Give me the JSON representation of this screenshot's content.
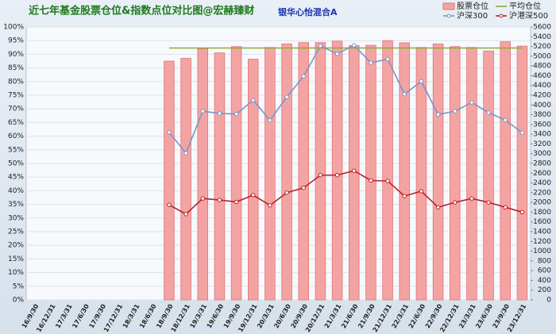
{
  "chart_data": {
    "type": "bar-line",
    "title": "近七年基金股票仓位&指数点位对比图@宏赫臻财",
    "subtitle": "银华心怡混合A",
    "categories": [
      "16/9/30",
      "16/12/31",
      "17/3/31",
      "17/6/30",
      "17/9/30",
      "17/12/31",
      "18/3/31",
      "18/6/30",
      "18/9/30",
      "18/12/31",
      "19/3/31",
      "19/6/30",
      "19/9/30",
      "19/12/31",
      "20/3/31",
      "20/6/30",
      "20/9/30",
      "20/12/31",
      "21/3/31",
      "21/6/30",
      "21/9/30",
      "21/12/31",
      "22/3/31",
      "22/6/30",
      "22/9/30",
      "22/12/31",
      "23/3/31",
      "23/6/30",
      "23/9/30",
      "23/12/31"
    ],
    "series": [
      {
        "name": "股票仓位",
        "kind": "bar",
        "color": "#f4a3a3",
        "values": [
          null,
          null,
          null,
          null,
          null,
          null,
          null,
          null,
          87.5,
          88.5,
          92,
          90.5,
          92.8,
          88.2,
          92.5,
          93.8,
          94.3,
          94.3,
          94.8,
          93.2,
          93.3,
          95,
          94.2,
          92.5,
          93.8,
          92.8,
          92.5,
          91.2,
          94.6,
          93
        ]
      },
      {
        "name": "平均仓位",
        "kind": "line",
        "color": "#8aaa3a",
        "values": [
          null,
          null,
          null,
          null,
          null,
          null,
          null,
          null,
          92.3,
          92.3,
          92.3,
          92.3,
          92.3,
          92.3,
          92.3,
          92.3,
          92.3,
          92.3,
          92.3,
          92.3,
          92.3,
          92.3,
          92.3,
          92.3,
          92.3,
          92.3,
          92.3,
          92.3,
          92.3,
          92.3
        ]
      },
      {
        "name": "沪深300",
        "kind": "line",
        "markers": true,
        "axis": "y2",
        "color": "#7a96c4",
        "values": [
          null,
          null,
          null,
          null,
          null,
          null,
          null,
          null,
          3438,
          3011,
          3872,
          3826,
          3814,
          4097,
          3686,
          4164,
          4587,
          5211,
          5048,
          5224,
          4867,
          4940,
          4222,
          4485,
          3804,
          3872,
          4051,
          3842,
          3690,
          3431
        ]
      },
      {
        "name": "沪港深500",
        "kind": "line",
        "markers": true,
        "axis": "y2",
        "color": "#b5232a",
        "values": [
          null,
          null,
          null,
          null,
          null,
          null,
          null,
          null,
          1950,
          1760,
          2080,
          2050,
          2010,
          2150,
          1940,
          2200,
          2300,
          2560,
          2560,
          2650,
          2450,
          2440,
          2130,
          2230,
          1900,
          2000,
          2080,
          2000,
          1900,
          1800
        ]
      }
    ],
    "ylim": [
      0,
      100
    ],
    "yticks": [
      {
        "value": 0,
        "label": "0%"
      },
      {
        "value": 5,
        "label": "5%"
      },
      {
        "value": 10,
        "label": "10%"
      },
      {
        "value": 15,
        "label": "15%"
      },
      {
        "value": 20,
        "label": "20%"
      },
      {
        "value": 25,
        "label": "25%"
      },
      {
        "value": 30,
        "label": "30%"
      },
      {
        "value": 35,
        "label": "35%"
      },
      {
        "value": 40,
        "label": "40%"
      },
      {
        "value": 45,
        "label": "45%"
      },
      {
        "value": 50,
        "label": "50%"
      },
      {
        "value": 55,
        "label": "55%"
      },
      {
        "value": 60,
        "label": "60%"
      },
      {
        "value": 65,
        "label": "65%"
      },
      {
        "value": 70,
        "label": "70%"
      },
      {
        "value": 75,
        "label": "75%"
      },
      {
        "value": 80,
        "label": "80%"
      },
      {
        "value": 85,
        "label": "85%"
      },
      {
        "value": 90,
        "label": "90%"
      },
      {
        "value": 95,
        "label": "95%"
      },
      {
        "value": 100,
        "label": "100%"
      }
    ],
    "y2lim": [
      0,
      5600
    ],
    "y2ticks": [
      0,
      200,
      400,
      600,
      800,
      1000,
      1200,
      1400,
      1600,
      1800,
      2000,
      2200,
      2400,
      2600,
      2800,
      3000,
      3200,
      3400,
      3600,
      3800,
      4000,
      4200,
      4400,
      4600,
      4800,
      5000,
      5200,
      5400,
      5600
    ],
    "grid": true
  }
}
